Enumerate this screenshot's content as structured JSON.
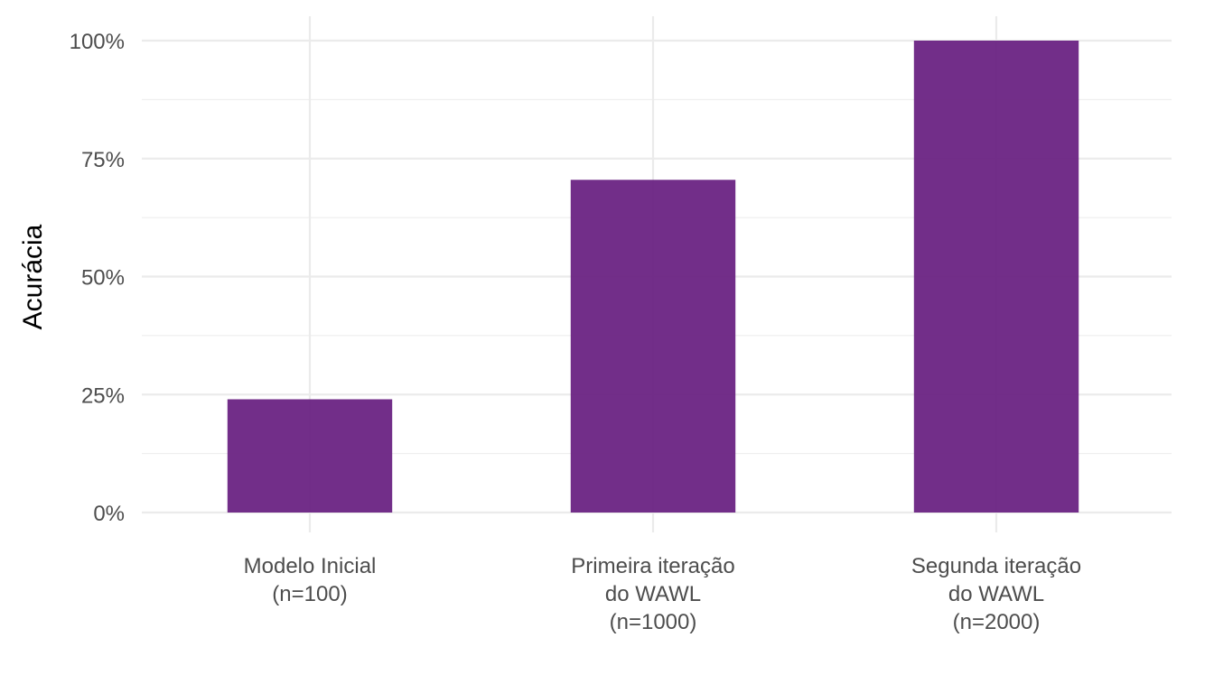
{
  "chart_data": {
    "type": "bar",
    "title": "",
    "xlabel": "",
    "ylabel": "Acurácia",
    "categories": [
      [
        "Modelo Inicial",
        "(n=100)"
      ],
      [
        "Primeira iteração",
        "do WAWL",
        "(n=1000)"
      ],
      [
        "Segunda iteração",
        "do WAWL",
        "(n=2000)"
      ]
    ],
    "values": [
      24,
      70.5,
      100
    ],
    "value_unit": "percent",
    "ylim": [
      0,
      100
    ],
    "yticks": [
      0,
      25,
      50,
      75,
      100
    ],
    "ytick_labels": [
      "0%",
      "25%",
      "50%",
      "75%",
      "100%"
    ],
    "grid": true,
    "legend": "none",
    "colors": {
      "bar": "#6a2383",
      "grid": "#ebebeb",
      "tick_text": "#4d4d4d",
      "title_text": "#000000"
    }
  }
}
